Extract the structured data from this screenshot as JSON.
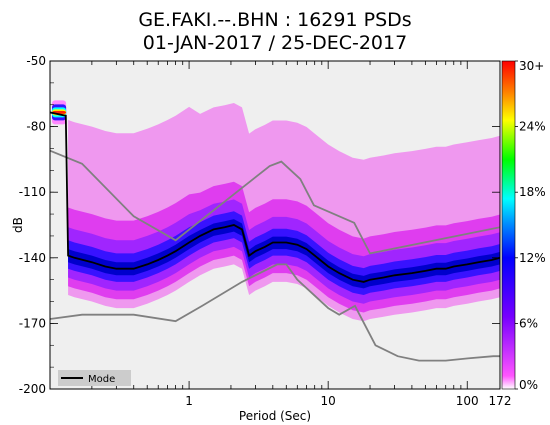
{
  "chart_data": {
    "type": "heatmap",
    "title": "GE.FAKI.--.BHN : 16291 PSDs",
    "subtitle": "01-JAN-2017 / 25-DEC-2017",
    "xlabel": "Period (Sec)",
    "ylabel": "dB",
    "x_scale": "log",
    "xlim": [
      0.1,
      172
    ],
    "ylim": [
      -200,
      -50
    ],
    "x_tick_labels": [
      "1",
      "10",
      "100",
      "172"
    ],
    "y_tick_labels": [
      "-50",
      "-80",
      "-110",
      "-140",
      "-170",
      "-200"
    ],
    "colorbar": {
      "labels": [
        "0%",
        "6%",
        "12%",
        "18%",
        "24%",
        "30+"
      ],
      "range": [
        0,
        30
      ],
      "colors": [
        "#ffffff",
        "#ff00ff",
        "#0000ff",
        "#00ffff",
        "#00ff00",
        "#ffff00",
        "#ff7f00",
        "#ff0000"
      ]
    },
    "legend": {
      "entries": [
        "Mode"
      ],
      "position": "bottom-left"
    },
    "series": [
      {
        "name": "Mode",
        "color": "#000000",
        "x": [
          0.1,
          0.13,
          0.135,
          0.15,
          0.2,
          0.25,
          0.3,
          0.4,
          0.5,
          0.6,
          0.7,
          0.8,
          1.0,
          1.2,
          1.5,
          1.8,
          2.1,
          2.4,
          2.7,
          3.0,
          3.5,
          4.0,
          5.0,
          6.0,
          7.0,
          8.0,
          10,
          12,
          15,
          18,
          20,
          25,
          30,
          40,
          50,
          60,
          70,
          80,
          100,
          120,
          150,
          172
        ],
        "y": [
          -73.5,
          -75,
          -139,
          -140,
          -142,
          -144,
          -145,
          -145,
          -143,
          -141,
          -139,
          -137,
          -133,
          -130,
          -127,
          -126,
          -125,
          -127,
          -139,
          -137,
          -135,
          -133,
          -133,
          -134,
          -136,
          -139,
          -144,
          -147,
          -150,
          -151,
          -150,
          -149,
          -148,
          -147,
          -146,
          -145,
          -145,
          -144,
          -143,
          -142,
          -141,
          -140
        ]
      }
    ],
    "reference_curves": [
      {
        "role": "upper noise model",
        "color": "#808080",
        "x": [
          0.1,
          0.17,
          0.4,
          0.8,
          3.8,
          4.6,
          6.3,
          7.9,
          15.4,
          20,
          172
        ],
        "y": [
          -91,
          -97,
          -121,
          -132,
          -98,
          -96,
          -104,
          -116,
          -124,
          -138,
          -126
        ]
      },
      {
        "role": "lower noise model",
        "color": "#808080",
        "x": [
          0.1,
          0.17,
          0.4,
          0.8,
          1.24,
          2.4,
          4.3,
          5.0,
          6.0,
          10.0,
          12.0,
          15.6,
          21.9,
          31.6,
          45.0,
          70.0,
          101.0,
          154.0,
          172.0
        ],
        "y": [
          -168,
          -166,
          -166,
          -169,
          -162,
          -151,
          -143,
          -143,
          -150,
          -163,
          -166,
          -162,
          -180,
          -185,
          -187,
          -187,
          -186,
          -185,
          -185
        ]
      }
    ]
  }
}
